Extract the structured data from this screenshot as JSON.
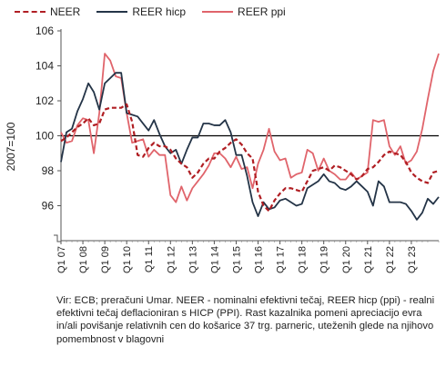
{
  "chart_data": {
    "type": "line",
    "ylabel": "2007=100",
    "ylim": [
      94,
      106
    ],
    "yticks": [
      96,
      98,
      100,
      102,
      104,
      106
    ],
    "reference_line": 100,
    "x_start": "Q1 07",
    "x_tick_labels": [
      "Q1 07",
      "Q1 08",
      "Q1 09",
      "Q1 10",
      "Q1 11",
      "Q1 12",
      "Q1 13",
      "Q1 14",
      "Q1 15",
      "Q1 16",
      "Q1 17",
      "Q1 18",
      "Q1 19",
      "Q1 20",
      "Q1 21",
      "Q1 22",
      "Q1 23"
    ],
    "series": [
      {
        "name": "NEER",
        "color": "#b01e23",
        "style": "dashed",
        "values": [
          99.7,
          99.9,
          100.2,
          100.5,
          100.7,
          101.0,
          100.6,
          100.7,
          101.5,
          101.6,
          101.6,
          101.6,
          101.8,
          100.8,
          98.9,
          98.8,
          99.3,
          99.6,
          99.4,
          99.4,
          99.2,
          98.7,
          98.4,
          98.2,
          97.6,
          97.9,
          98.4,
          98.7,
          98.7,
          99.1,
          99.3,
          99.6,
          99.8,
          99.5,
          99.0,
          98.7,
          96.8,
          96.0,
          95.7,
          96.3,
          96.7,
          97.0,
          97.0,
          96.9,
          96.8,
          97.4,
          98.0,
          98.1,
          98.2,
          98.0,
          98.3,
          98.2,
          98.0,
          97.8,
          97.5,
          97.7,
          98.1,
          98.2,
          98.5,
          98.9,
          99.1,
          99.0,
          98.9,
          98.5,
          97.9,
          97.6,
          97.4,
          97.3,
          97.9,
          98.0
        ]
      },
      {
        "name": "REER hicp",
        "color": "#243447",
        "style": "solid",
        "values": [
          98.5,
          100.2,
          100.4,
          101.4,
          102.1,
          103.0,
          102.5,
          101.5,
          103.0,
          103.3,
          103.6,
          103.6,
          101.3,
          101.2,
          101.1,
          100.7,
          100.3,
          100.9,
          100.1,
          99.4,
          99.0,
          99.2,
          98.4,
          99.2,
          99.9,
          99.9,
          100.7,
          100.7,
          100.6,
          100.6,
          100.9,
          100.2,
          98.9,
          98.9,
          97.7,
          96.2,
          95.4,
          96.2,
          95.8,
          95.9,
          96.3,
          96.4,
          96.2,
          96.0,
          96.1,
          97.0,
          97.2,
          97.4,
          97.8,
          97.4,
          97.3,
          97.0,
          96.9,
          97.1,
          97.4,
          97.1,
          96.8,
          96.0,
          97.4,
          97.1,
          96.2,
          96.2,
          96.2,
          96.1,
          95.7,
          95.2,
          95.6,
          96.4,
          96.1,
          96.5
        ]
      },
      {
        "name": "REER ppi",
        "color": "#e0646b",
        "style": "solid",
        "values": [
          100.2,
          99.6,
          99.7,
          100.6,
          101.0,
          100.9,
          99.0,
          101.3,
          104.7,
          104.3,
          103.4,
          103.3,
          101.3,
          99.6,
          99.7,
          99.8,
          98.8,
          99.2,
          98.9,
          98.9,
          96.6,
          96.2,
          97.1,
          96.3,
          97.0,
          97.4,
          97.8,
          98.3,
          99.0,
          99.0,
          98.7,
          98.2,
          98.8,
          98.1,
          98.2,
          97.0,
          98.4,
          99.2,
          100.4,
          99.1,
          98.6,
          98.7,
          97.6,
          97.8,
          97.9,
          99.2,
          99.0,
          98.0,
          98.7,
          98.0,
          97.8,
          97.5,
          97.5,
          97.9,
          97.5,
          97.7,
          97.9,
          100.9,
          100.8,
          100.9,
          99.4,
          98.9,
          99.4,
          98.4,
          98.6,
          99.1,
          100.4,
          102.1,
          103.7,
          104.7
        ]
      }
    ]
  },
  "legend": {
    "items": [
      {
        "label": "NEER",
        "color": "#b01e23",
        "style": "dashed"
      },
      {
        "label": "REER hicp",
        "color": "#243447",
        "style": "solid"
      },
      {
        "label": "REER ppi",
        "color": "#e0646b",
        "style": "solid"
      }
    ]
  },
  "source_note": "Vir: ECB; preračuni Umar. NEER - nominalni efektivni tečaj, REER hicp (ppi) - realni efektivni tečaj deflacioniran s HICP (PPI). Rast kazalnika pomeni apreciacijo evra in/ali povišanje relativnih cen do košarice 37 trg. parneric, uteženih glede na njihovo pomembnost v blagovni"
}
